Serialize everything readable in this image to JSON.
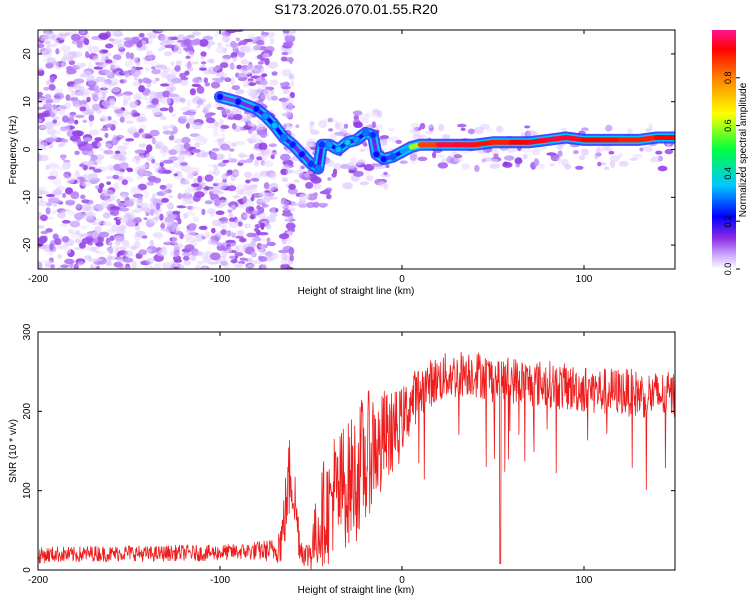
{
  "title": "S173.2026.070.01.55.R20",
  "colors": {
    "scatter": "#7a22e6",
    "ridge_low": "#1e5cff",
    "ridge_mid": "#00c8ff",
    "ridge_high": "#ff1e1e",
    "snr_line": "#ee1c1c"
  },
  "colorbar": {
    "label": "Normalized spectral amplitude",
    "ticks": [
      "0.0",
      "0.2",
      "0.4",
      "0.6",
      "0.8"
    ],
    "range": [
      0,
      1
    ],
    "colormap": [
      "#ffffff",
      "#c9a6ff",
      "#8a2be2",
      "#0000ff",
      "#00c8ff",
      "#00ff40",
      "#ffff00",
      "#ff8000",
      "#ff0000",
      "#ff1493"
    ]
  },
  "chart_data": [
    {
      "type": "heatmap",
      "title": "S173.2026.070.01.55.R20",
      "xlabel": "Height of straight line (km)",
      "ylabel": "Frequency (Hz)",
      "xlim": [
        -200,
        150
      ],
      "ylim": [
        -25,
        25
      ],
      "xticks": [
        -200,
        -100,
        0,
        100
      ],
      "xtick_labels": [
        "-200",
        "-100",
        "0",
        "100"
      ],
      "yticks": [
        -20,
        -10,
        0,
        10,
        20
      ],
      "ytick_labels": [
        "-20",
        "-10",
        "0",
        "10",
        "20"
      ],
      "noise_region_x": [
        -200,
        -75
      ],
      "noise_patch_x": [
        -65,
        -60
      ],
      "ridge": [
        {
          "x": -100,
          "y": 11,
          "amp": 0.22
        },
        {
          "x": -90,
          "y": 10,
          "amp": 0.22
        },
        {
          "x": -80,
          "y": 8.5,
          "amp": 0.24
        },
        {
          "x": -75,
          "y": 7,
          "amp": 0.32
        },
        {
          "x": -70,
          "y": 5,
          "amp": 0.34
        },
        {
          "x": -65,
          "y": 2.5,
          "amp": 0.3
        },
        {
          "x": -60,
          "y": 1,
          "amp": 0.25
        },
        {
          "x": -55,
          "y": -1,
          "amp": 0.22
        },
        {
          "x": -50,
          "y": -3,
          "amp": 0.26
        },
        {
          "x": -46,
          "y": -4,
          "amp": 0.3
        },
        {
          "x": -44,
          "y": 1,
          "amp": 0.26
        },
        {
          "x": -40,
          "y": 1,
          "amp": 0.32
        },
        {
          "x": -35,
          "y": 0,
          "amp": 0.34
        },
        {
          "x": -30,
          "y": 1.5,
          "amp": 0.36
        },
        {
          "x": -25,
          "y": 2,
          "amp": 0.32
        },
        {
          "x": -20,
          "y": 3.5,
          "amp": 0.3
        },
        {
          "x": -16,
          "y": 3,
          "amp": 0.26
        },
        {
          "x": -14,
          "y": -1,
          "amp": 0.22
        },
        {
          "x": -10,
          "y": -2,
          "amp": 0.24
        },
        {
          "x": -5,
          "y": -1.5,
          "amp": 0.28
        },
        {
          "x": 0,
          "y": -0.5,
          "amp": 0.34
        },
        {
          "x": 5,
          "y": 0.5,
          "amp": 0.5
        },
        {
          "x": 10,
          "y": 1,
          "amp": 0.75
        },
        {
          "x": 20,
          "y": 1,
          "amp": 0.92
        },
        {
          "x": 30,
          "y": 1,
          "amp": 0.95
        },
        {
          "x": 40,
          "y": 1,
          "amp": 0.9
        },
        {
          "x": 50,
          "y": 1.5,
          "amp": 0.85
        },
        {
          "x": 60,
          "y": 1.5,
          "amp": 0.88
        },
        {
          "x": 70,
          "y": 1.5,
          "amp": 0.9
        },
        {
          "x": 80,
          "y": 2,
          "amp": 0.92
        },
        {
          "x": 90,
          "y": 2.5,
          "amp": 0.95
        },
        {
          "x": 100,
          "y": 2,
          "amp": 0.9
        },
        {
          "x": 110,
          "y": 2,
          "amp": 0.88
        },
        {
          "x": 120,
          "y": 2,
          "amp": 0.88
        },
        {
          "x": 130,
          "y": 2,
          "amp": 0.85
        },
        {
          "x": 140,
          "y": 2.5,
          "amp": 0.88
        },
        {
          "x": 150,
          "y": 2.5,
          "amp": 0.9
        }
      ]
    },
    {
      "type": "line",
      "xlabel": "Height of straight line (km)",
      "ylabel": "SNR (10 * v/v)",
      "xlim": [
        -200,
        150
      ],
      "ylim": [
        0,
        300
      ],
      "xticks": [
        -200,
        -100,
        0,
        100
      ],
      "xtick_labels": [
        "-200",
        "-100",
        "0",
        "100"
      ],
      "yticks": [
        0,
        100,
        200,
        300
      ],
      "ytick_labels": [
        "0",
        "100",
        "200",
        "300"
      ],
      "series": [
        {
          "name": "SNR",
          "x": [
            -200,
            -190,
            -180,
            -170,
            -160,
            -150,
            -140,
            -130,
            -120,
            -110,
            -100,
            -90,
            -80,
            -70,
            -66,
            -63,
            -61,
            -60,
            -58,
            -56,
            -53,
            -50,
            -48,
            -45,
            -42,
            -40,
            -38,
            -35,
            -32,
            -30,
            -27,
            -25,
            -22,
            -20,
            -18,
            -15,
            -12,
            -10,
            -8,
            -5,
            -2,
            0,
            3,
            6,
            10,
            15,
            20,
            25,
            30,
            35,
            40,
            45,
            50,
            60,
            70,
            80,
            90,
            100,
            110,
            120,
            130,
            140,
            150
          ],
          "y": [
            18,
            20,
            19,
            21,
            20,
            22,
            20,
            21,
            22,
            21,
            22,
            23,
            24,
            25,
            40,
            95,
            130,
            110,
            70,
            30,
            18,
            25,
            40,
            60,
            80,
            75,
            100,
            90,
            110,
            105,
            120,
            115,
            140,
            130,
            150,
            160,
            145,
            170,
            165,
            175,
            180,
            190,
            200,
            215,
            225,
            235,
            240,
            245,
            245,
            250,
            248,
            245,
            240,
            240,
            235,
            235,
            230,
            228,
            225,
            225,
            222,
            220,
            220
          ],
          "noise": [
            10,
            10,
            10,
            10,
            10,
            10,
            10,
            10,
            10,
            10,
            10,
            10,
            12,
            15,
            35,
            50,
            60,
            50,
            40,
            20,
            15,
            30,
            40,
            60,
            70,
            70,
            80,
            80,
            80,
            80,
            80,
            80,
            80,
            80,
            80,
            70,
            70,
            60,
            60,
            50,
            50,
            40,
            40,
            35,
            35,
            30,
            30,
            30,
            30,
            30,
            30,
            30,
            30,
            30,
            30,
            30,
            30,
            30,
            30,
            30,
            30,
            30,
            30
          ]
        }
      ]
    }
  ]
}
